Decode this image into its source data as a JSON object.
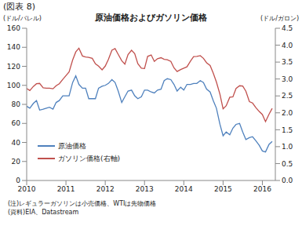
{
  "chart_data": {
    "type": "line",
    "figure_label": "(図表 8)",
    "title": "原油価格およびガソリン価格",
    "y_label": "(ドル/バレル)",
    "y2_label": "(ドル/ガロン)",
    "notes": [
      "(注)レギュラーガソリンは小売価格、WTIは先物価格",
      "(資料)EIA、Datastream"
    ],
    "legend": "lower left",
    "grid": false,
    "x": [
      2010.0,
      2010.08,
      2010.17,
      2010.25,
      2010.33,
      2010.42,
      2010.5,
      2010.58,
      2010.67,
      2010.75,
      2010.83,
      2010.92,
      2011.0,
      2011.08,
      2011.17,
      2011.25,
      2011.33,
      2011.42,
      2011.5,
      2011.58,
      2011.67,
      2011.75,
      2011.83,
      2011.92,
      2012.0,
      2012.08,
      2012.17,
      2012.25,
      2012.33,
      2012.42,
      2012.5,
      2012.58,
      2012.67,
      2012.75,
      2012.83,
      2012.92,
      2013.0,
      2013.08,
      2013.17,
      2013.25,
      2013.33,
      2013.42,
      2013.5,
      2013.58,
      2013.67,
      2013.75,
      2013.83,
      2013.92,
      2014.0,
      2014.08,
      2014.17,
      2014.25,
      2014.33,
      2014.42,
      2014.5,
      2014.58,
      2014.67,
      2014.75,
      2014.83,
      2014.92,
      2015.0,
      2015.08,
      2015.17,
      2015.25,
      2015.33,
      2015.42,
      2015.5,
      2015.58,
      2015.67,
      2015.75,
      2015.83,
      2015.92,
      2016.0,
      2016.08,
      2016.17,
      2016.25
    ],
    "xlim": [
      2010,
      2016.33
    ],
    "xticks": [
      2010,
      2011,
      2012,
      2013,
      2014,
      2015,
      2016
    ],
    "ylim": [
      0,
      160
    ],
    "yticks": [
      0,
      20,
      40,
      60,
      80,
      100,
      120,
      140,
      160
    ],
    "y2lim": [
      0,
      4.5
    ],
    "y2ticks": [
      {
        "value": 0,
        "label": "0.0"
      },
      {
        "value": 0.5,
        "label": "0.5"
      },
      {
        "value": 1,
        "label": "1.0"
      },
      {
        "value": 1.5,
        "label": "1.5"
      },
      {
        "value": 2,
        "label": "2.0"
      },
      {
        "value": 2.5,
        "label": "2.5"
      },
      {
        "value": 3,
        "label": "3.0"
      },
      {
        "value": 3.5,
        "label": "3.5"
      },
      {
        "value": 4,
        "label": "4.0"
      },
      {
        "value": 4.5,
        "label": "4.5"
      }
    ],
    "series": [
      {
        "name": "原油価格",
        "color": "#4f81bd",
        "axis": "y",
        "values": [
          78,
          76,
          81,
          84,
          74,
          75,
          76,
          77,
          75,
          82,
          84,
          89,
          89,
          89,
          103,
          110,
          101,
          97,
          97,
          86,
          86,
          86,
          97,
          99,
          100,
          102,
          106,
          103,
          94,
          82,
          88,
          94,
          95,
          89,
          86,
          88,
          95,
          95,
          93,
          92,
          95,
          96,
          105,
          107,
          106,
          101,
          94,
          98,
          95,
          101,
          101,
          102,
          102,
          105,
          103,
          96,
          93,
          84,
          76,
          59,
          47,
          51,
          48,
          55,
          59,
          60,
          51,
          43,
          45,
          46,
          42,
          37,
          31,
          30,
          38,
          41
        ]
      },
      {
        "name": "ガソリン価格(右軸)",
        "color": "#c0504d",
        "axis": "y2",
        "values": [
          2.72,
          2.66,
          2.78,
          2.86,
          2.87,
          2.74,
          2.73,
          2.73,
          2.71,
          2.8,
          2.86,
          2.99,
          3.1,
          3.21,
          3.56,
          3.8,
          3.91,
          3.68,
          3.65,
          3.64,
          3.61,
          3.45,
          3.38,
          3.27,
          3.38,
          3.58,
          3.85,
          3.9,
          3.73,
          3.54,
          3.44,
          3.72,
          3.85,
          3.75,
          3.45,
          3.32,
          3.31,
          3.67,
          3.71,
          3.52,
          3.6,
          3.63,
          3.58,
          3.57,
          3.52,
          3.33,
          3.22,
          3.28,
          3.32,
          3.36,
          3.53,
          3.66,
          3.67,
          3.69,
          3.61,
          3.48,
          3.4,
          3.17,
          2.91,
          2.55,
          2.12,
          2.21,
          2.46,
          2.47,
          2.72,
          2.8,
          2.79,
          2.64,
          2.33,
          2.29,
          2.16,
          2.04,
          1.95,
          1.74,
          1.96,
          2.13
        ]
      }
    ]
  }
}
